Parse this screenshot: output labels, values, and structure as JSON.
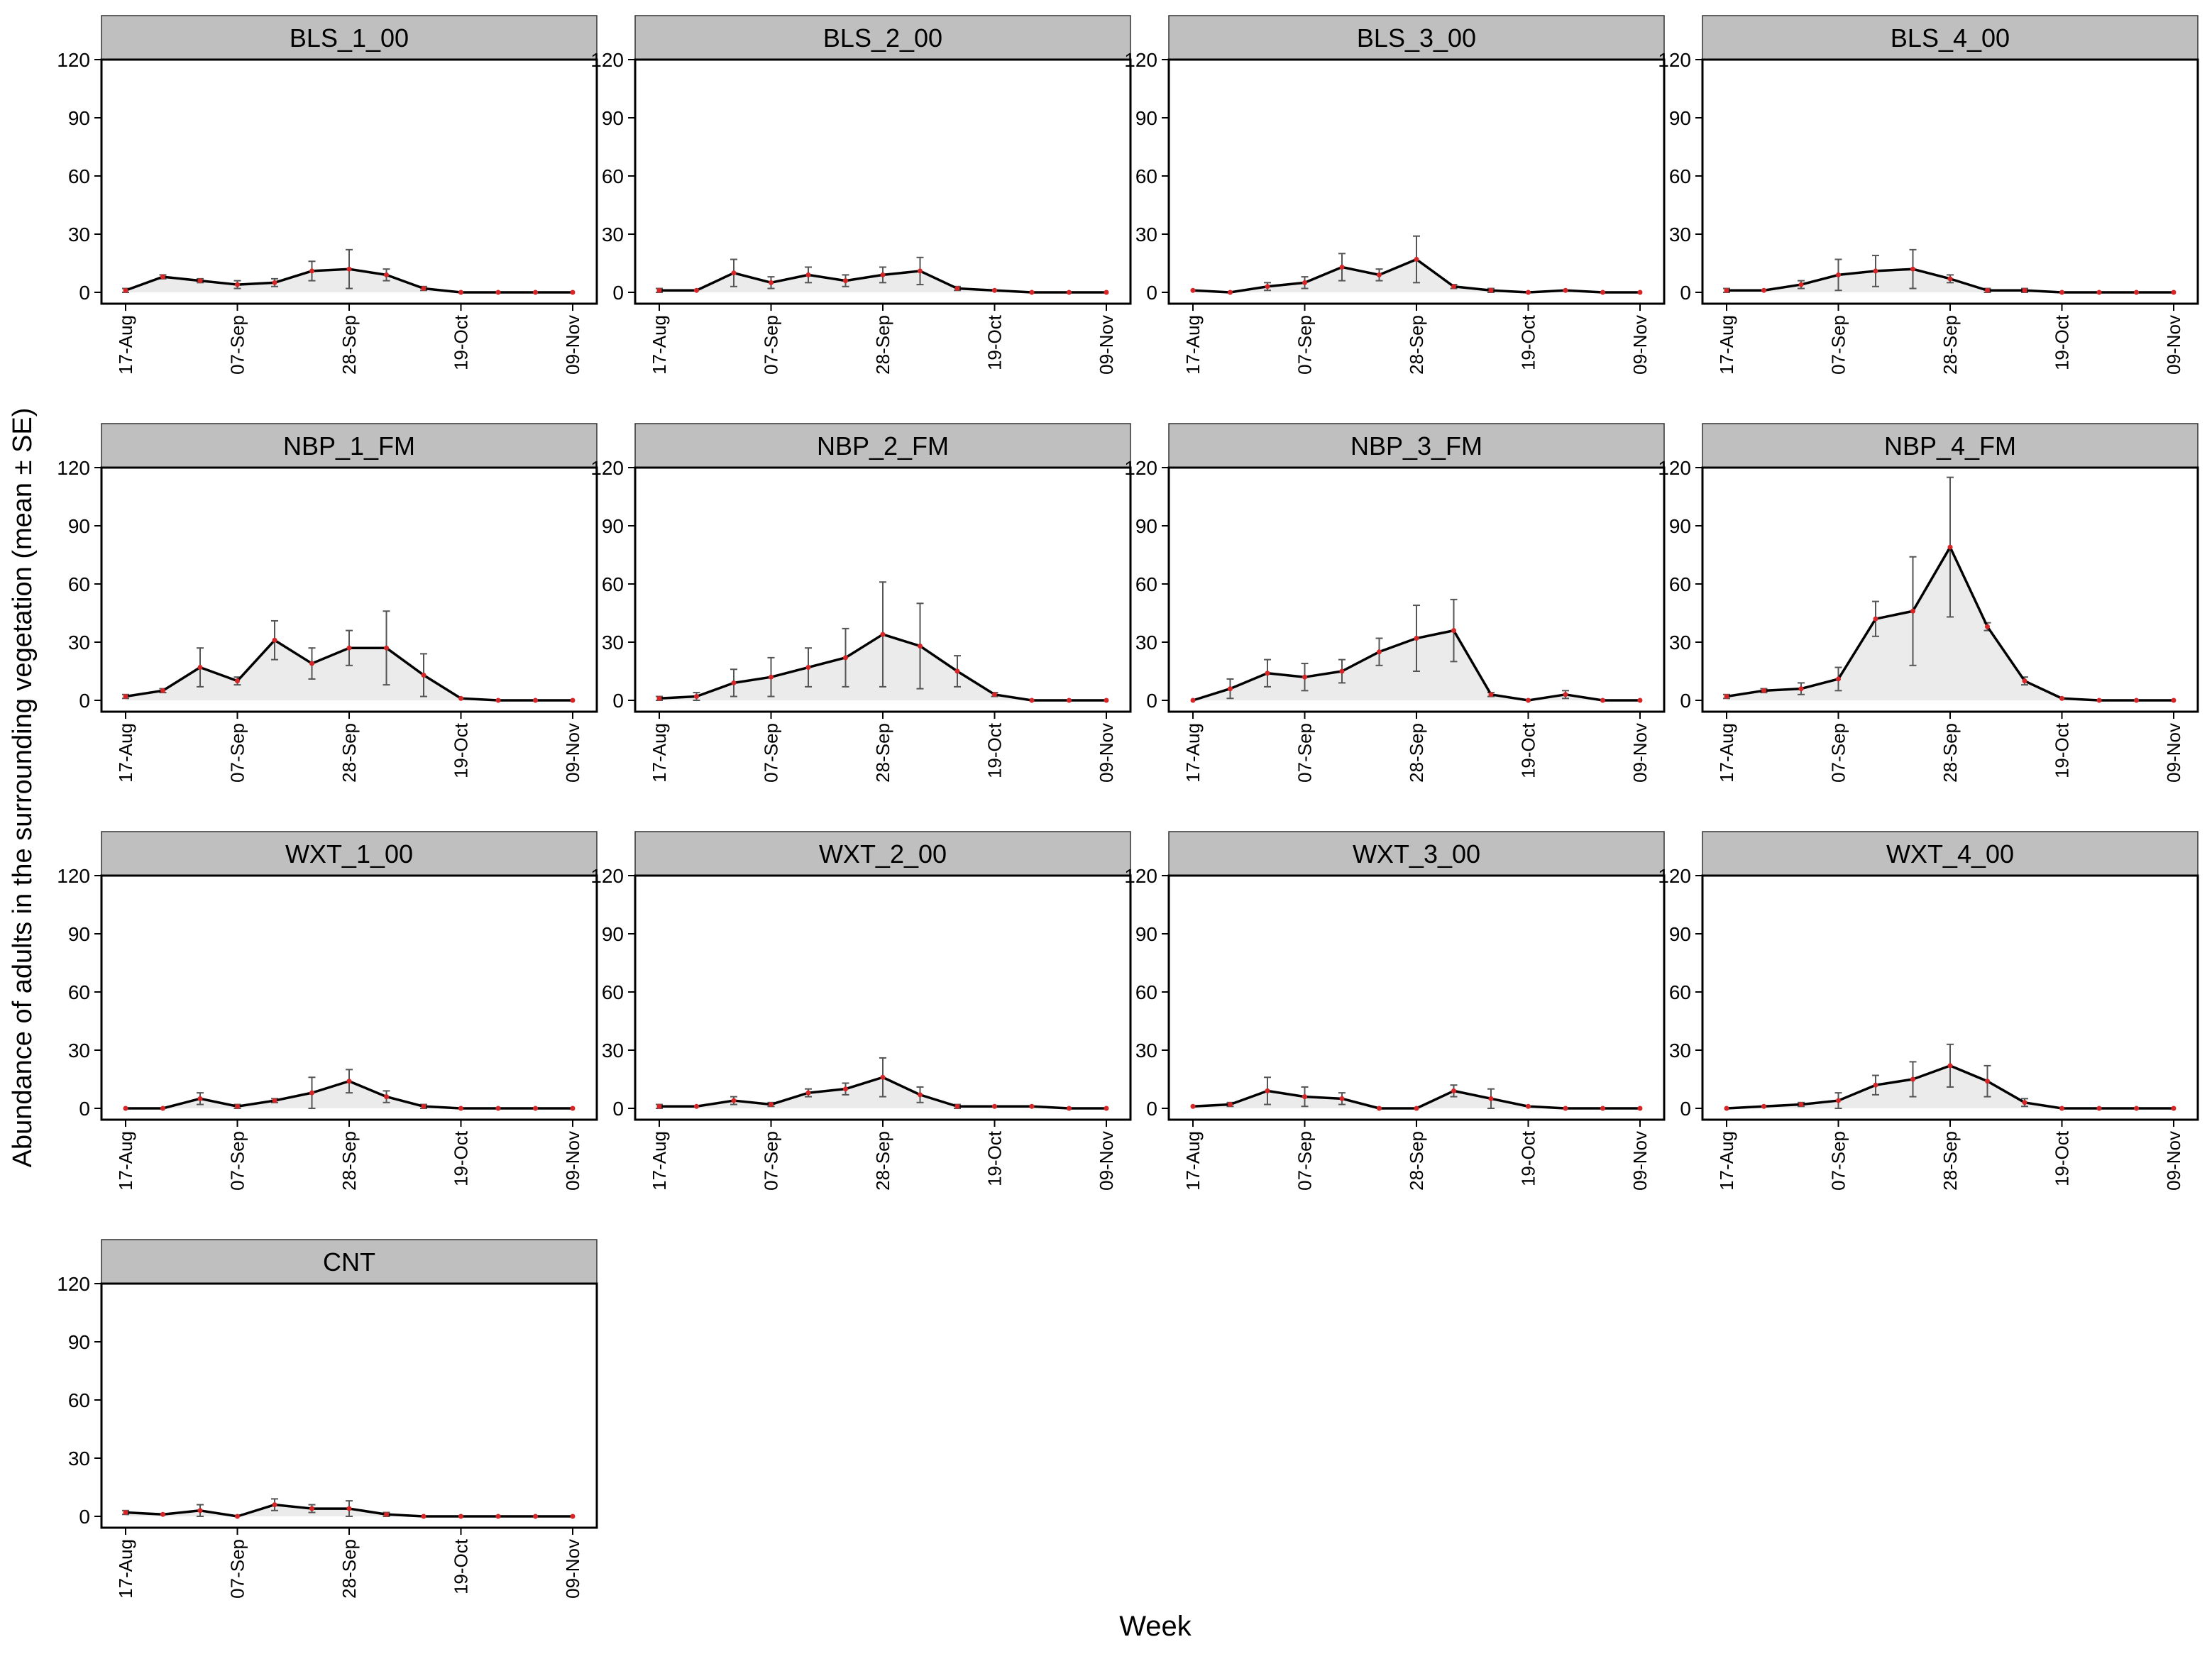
{
  "chart_data": {
    "type": "line",
    "x_unit": "days from 17-Aug",
    "xlabel": "Week",
    "ylabel": "Abundance of adults in the surrounding vegetation (mean ± SE)",
    "ylim": [
      0,
      120
    ],
    "y_ticks": [
      0,
      30,
      60,
      90,
      120
    ],
    "x_ticks": [
      {
        "day": 0,
        "label": "17-Aug"
      },
      {
        "day": 21,
        "label": "07-Sep"
      },
      {
        "day": 42,
        "label": "28-Sep"
      },
      {
        "day": 63,
        "label": "19-Oct"
      },
      {
        "day": 84,
        "label": "09-Nov"
      }
    ],
    "x": [
      0,
      7,
      14,
      21,
      28,
      35,
      42,
      49,
      56,
      63,
      70,
      77,
      84
    ],
    "panels": [
      {
        "name": "BLS_1_00",
        "values": [
          1,
          8,
          6,
          4,
          5,
          11,
          12,
          9,
          2,
          0,
          0,
          0,
          0
        ],
        "errors": [
          1,
          1,
          1,
          2,
          2,
          5,
          10,
          3,
          1,
          0,
          0,
          0,
          0
        ]
      },
      {
        "name": "BLS_2_00",
        "values": [
          1,
          1,
          10,
          5,
          9,
          6,
          9,
          11,
          2,
          1,
          0,
          0,
          0
        ],
        "errors": [
          1,
          0,
          7,
          3,
          4,
          3,
          4,
          7,
          1,
          0,
          0,
          0,
          0
        ]
      },
      {
        "name": "BLS_3_00",
        "values": [
          1,
          0,
          3,
          5,
          13,
          9,
          17,
          3,
          1,
          0,
          1,
          0,
          0
        ],
        "errors": [
          0,
          0,
          2,
          3,
          7,
          3,
          12,
          1,
          1,
          0,
          0,
          0,
          0
        ]
      },
      {
        "name": "BLS_4_00",
        "values": [
          1,
          1,
          4,
          9,
          11,
          12,
          7,
          1,
          1,
          0,
          0,
          0,
          0
        ],
        "errors": [
          1,
          0,
          2,
          8,
          8,
          10,
          2,
          1,
          1,
          0,
          0,
          0,
          0
        ]
      },
      {
        "name": "NBP_1_FM",
        "values": [
          2,
          5,
          17,
          10,
          31,
          19,
          27,
          27,
          13,
          1,
          0,
          0,
          0
        ],
        "errors": [
          1,
          1,
          10,
          2,
          10,
          8,
          9,
          19,
          11,
          0,
          0,
          0,
          0
        ]
      },
      {
        "name": "NBP_2_FM",
        "values": [
          1,
          2,
          9,
          12,
          17,
          22,
          34,
          28,
          15,
          3,
          0,
          0,
          0
        ],
        "errors": [
          1,
          2,
          7,
          10,
          10,
          15,
          27,
          22,
          8,
          1,
          0,
          0,
          0
        ]
      },
      {
        "name": "NBP_3_FM",
        "values": [
          0,
          6,
          14,
          12,
          15,
          25,
          32,
          36,
          3,
          0,
          3,
          0,
          0
        ],
        "errors": [
          0,
          5,
          7,
          7,
          6,
          7,
          17,
          16,
          1,
          0,
          2,
          0,
          0
        ]
      },
      {
        "name": "NBP_4_FM",
        "values": [
          2,
          5,
          6,
          11,
          42,
          46,
          79,
          38,
          10,
          1,
          0,
          0,
          0
        ],
        "errors": [
          1,
          1,
          3,
          6,
          9,
          28,
          36,
          2,
          2,
          0,
          0,
          0,
          0
        ]
      },
      {
        "name": "WXT_1_00",
        "values": [
          0,
          0,
          5,
          1,
          4,
          8,
          14,
          6,
          1,
          0,
          0,
          0,
          0
        ],
        "errors": [
          0,
          0,
          3,
          1,
          1,
          8,
          6,
          3,
          1,
          0,
          0,
          0,
          0
        ]
      },
      {
        "name": "WXT_2_00",
        "values": [
          1,
          1,
          4,
          2,
          8,
          10,
          16,
          7,
          1,
          1,
          1,
          0,
          0
        ],
        "errors": [
          1,
          0,
          2,
          1,
          2,
          3,
          10,
          4,
          1,
          0,
          0,
          0,
          0
        ]
      },
      {
        "name": "WXT_3_00",
        "values": [
          1,
          2,
          9,
          6,
          5,
          0,
          0,
          9,
          5,
          1,
          0,
          0,
          0
        ],
        "errors": [
          0,
          1,
          7,
          5,
          3,
          0,
          0,
          3,
          5,
          0,
          0,
          0,
          0
        ]
      },
      {
        "name": "WXT_4_00",
        "values": [
          0,
          1,
          2,
          4,
          12,
          15,
          22,
          14,
          3,
          0,
          0,
          0,
          0
        ],
        "errors": [
          0,
          0,
          1,
          4,
          5,
          9,
          11,
          8,
          2,
          0,
          0,
          0,
          0
        ]
      },
      {
        "name": "CNT",
        "values": [
          2,
          1,
          3,
          0,
          6,
          4,
          4,
          1,
          0,
          0,
          0,
          0,
          0
        ],
        "errors": [
          1,
          0,
          3,
          0,
          3,
          2,
          4,
          1,
          0,
          0,
          0,
          0,
          0
        ]
      }
    ]
  },
  "colors": {
    "line": "#000000",
    "point": "#d62728",
    "errorbar": "#555555",
    "area_fill": "#ebebeb",
    "strip_fill": "#bfbfbf",
    "axis": "#000000"
  }
}
